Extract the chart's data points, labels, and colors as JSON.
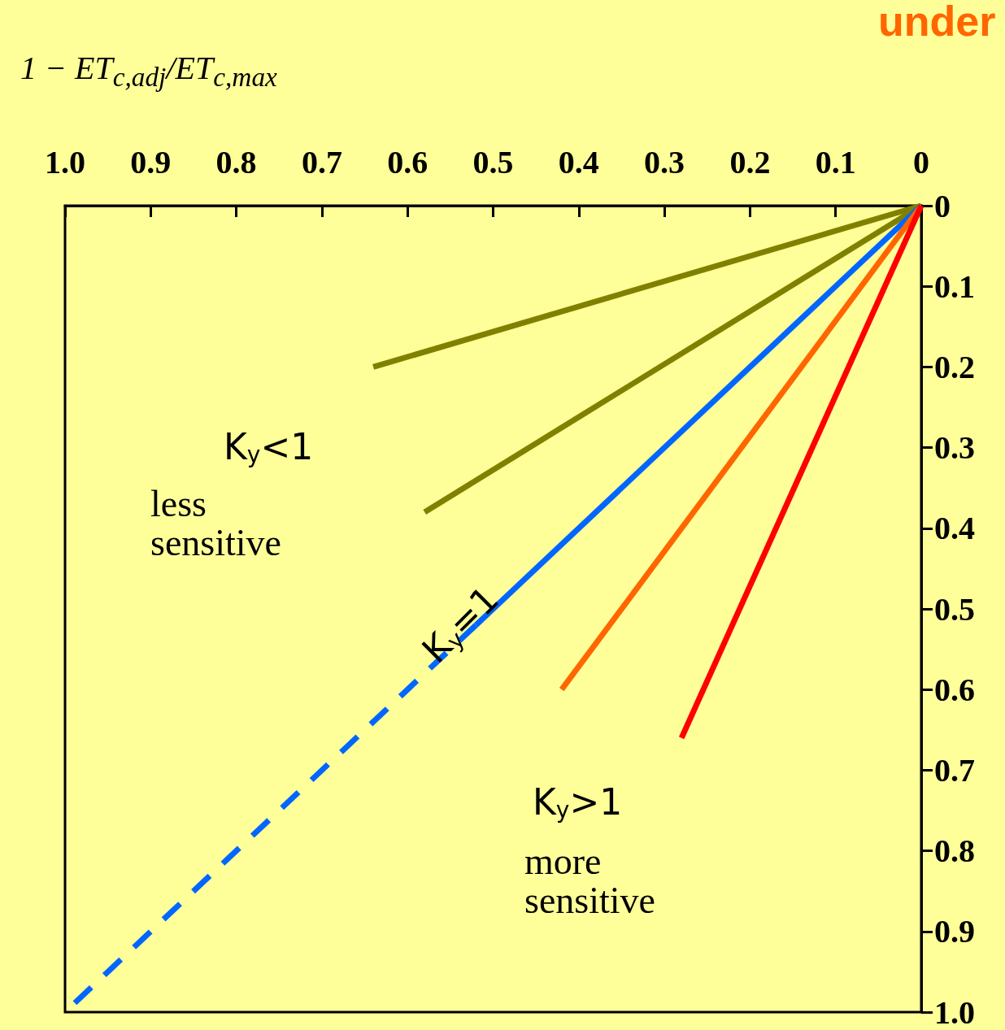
{
  "chart_data": {
    "type": "line",
    "xlabel": "1 − ET$_{c,adj}$/ET$_{c,max}$",
    "xlim": [
      1,
      0
    ],
    "ylim": [
      1,
      0
    ],
    "xticks": [
      {
        "value": 1,
        "label": "1.0"
      },
      0.9,
      0.8,
      0.7,
      0.6,
      0.5,
      0.4,
      0.3,
      0.2,
      0.1,
      0
    ],
    "yticks": [
      0,
      0.1,
      0.2,
      0.3,
      0.4,
      0.5,
      0.6,
      0.7,
      0.8,
      0.9,
      {
        "value": 1,
        "label": "1.0"
      }
    ],
    "grid": false,
    "marker": "none",
    "series": [
      {
        "color": "#808000",
        "x": [
          0,
          0.64
        ],
        "values": [
          0,
          0.2
        ]
      },
      {
        "color": "#808000",
        "x": [
          0,
          0.58
        ],
        "values": [
          0,
          0.38
        ]
      },
      {
        "color": "#0066ff",
        "x": [
          0,
          0.52
        ],
        "values": [
          0,
          0.52
        ]
      },
      {
        "color": "#0066ff",
        "x": [
          0.52,
          0.99
        ],
        "values": [
          0.52,
          0.99
        ],
        "line_style": "dashed"
      },
      {
        "color": "#ff6600",
        "x": [
          0,
          0.42
        ],
        "values": [
          0,
          0.6
        ]
      },
      {
        "color": "#ff0000",
        "x": [
          0,
          0.28
        ],
        "values": [
          0,
          0.66
        ]
      }
    ],
    "annotations": [
      "K$_{y}$<1",
      "less\nsensitive",
      "K$_{y}$=1",
      "K$_{y}$>1",
      "more\nsensitive",
      "under"
    ]
  }
}
